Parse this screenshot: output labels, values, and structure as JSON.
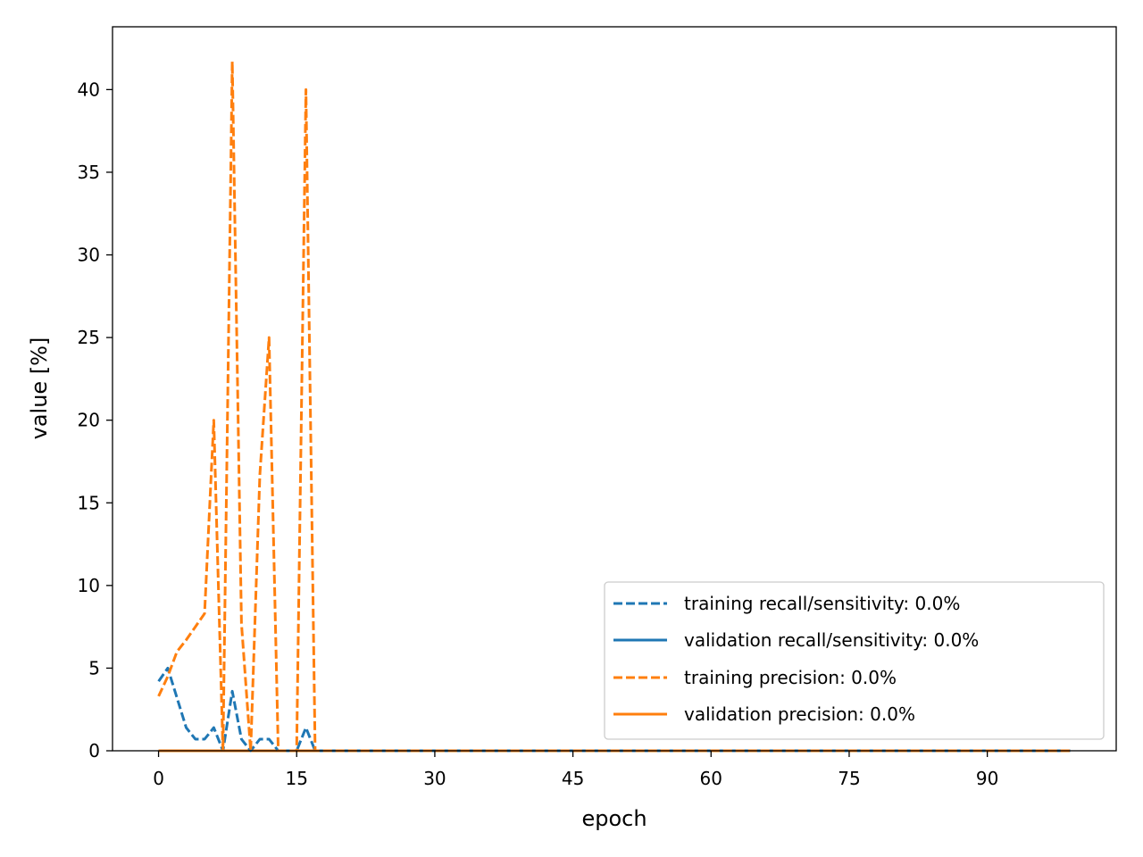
{
  "chart_data": {
    "type": "line",
    "title": "",
    "xlabel": "epoch",
    "ylabel": "value [%]",
    "xlim": [
      -5,
      104
    ],
    "ylim": [
      0,
      43.8
    ],
    "xticks": [
      0,
      15,
      30,
      45,
      60,
      75,
      90
    ],
    "yticks": [
      0,
      5,
      10,
      15,
      20,
      25,
      30,
      35,
      40
    ],
    "grid": false,
    "legend_position": "lower right",
    "colors": {
      "recall": "#1f77b4",
      "precision": "#ff7f0e"
    },
    "series": [
      {
        "name": "training recall/sensitivity: 0.0%",
        "style": "dashed",
        "color": "#1f77b4",
        "x": [
          0,
          1,
          2,
          3,
          4,
          5,
          6,
          7,
          8,
          9,
          10,
          11,
          12,
          13,
          14,
          15,
          16,
          17,
          18,
          99
        ],
        "y": [
          4.2,
          5.0,
          3.2,
          1.4,
          0.7,
          0.7,
          1.4,
          0.0,
          3.6,
          0.7,
          0.0,
          0.7,
          0.7,
          0.0,
          0.0,
          0.0,
          1.4,
          0.0,
          0.0,
          0.0
        ]
      },
      {
        "name": "validation recall/sensitivity: 0.0%",
        "style": "solid",
        "color": "#1f77b4",
        "x": [
          0,
          99
        ],
        "y": [
          0.0,
          0.0
        ]
      },
      {
        "name": "training precision: 0.0%",
        "style": "dashed",
        "color": "#ff7f0e",
        "x": [
          0,
          1,
          2,
          3,
          4,
          5,
          6,
          7,
          8,
          9,
          10,
          11,
          12,
          13,
          14,
          15,
          16,
          17,
          18,
          99
        ],
        "y": [
          3.3,
          4.5,
          6.0,
          6.7,
          7.5,
          8.3,
          20.0,
          0.0,
          41.7,
          7.7,
          0.0,
          16.7,
          25.0,
          0.0,
          0.0,
          0.0,
          40.0,
          0.0,
          0.0,
          0.0
        ]
      },
      {
        "name": "validation precision: 0.0%",
        "style": "solid",
        "color": "#ff7f0e",
        "x": [
          0,
          99
        ],
        "y": [
          0.0,
          0.0
        ]
      }
    ]
  }
}
